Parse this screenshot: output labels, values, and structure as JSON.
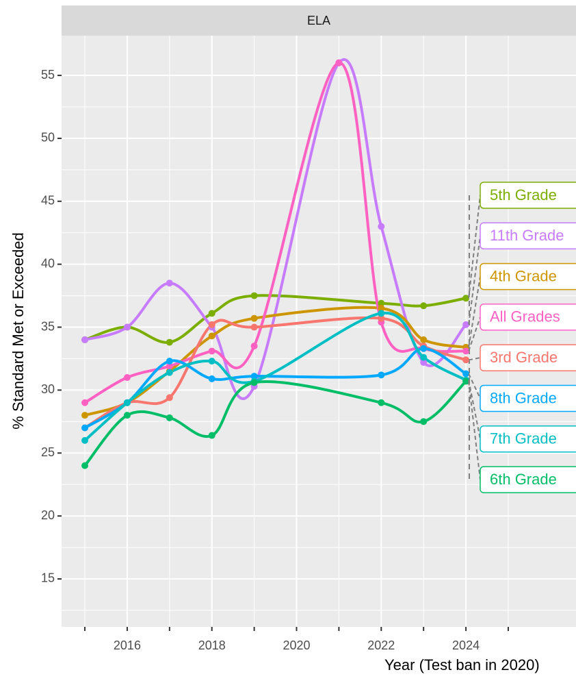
{
  "chart_data": {
    "type": "line",
    "strip": "ELA",
    "xlabel": "Year (Test ban in 2020)",
    "ylabel": "% Standard Met or Exceeded",
    "xlim": [
      2014.45,
      2026.6
    ],
    "ylim": [
      11.19,
      58.16
    ],
    "xticks": [
      2016,
      2018,
      2020,
      2022,
      2024
    ],
    "yticks": [
      15,
      20,
      25,
      30,
      35,
      40,
      45,
      50,
      55
    ],
    "grid": true,
    "series": [
      {
        "name": "5th Grade",
        "color": "#7CAE00",
        "x": [
          2015,
          2016,
          2017,
          2018,
          2019,
          2022,
          2023,
          2024
        ],
        "values": [
          34,
          35,
          33.8,
          36.1,
          37.5,
          36.9,
          36.7,
          37.3
        ]
      },
      {
        "name": "11th Grade",
        "color": "#C77CFF",
        "x": [
          2015,
          2016,
          2017,
          2018,
          2019,
          2021,
          2022,
          2023,
          2024
        ],
        "values": [
          34,
          35,
          38.5,
          35,
          30.3,
          56,
          43,
          32.2,
          35.2
        ]
      },
      {
        "name": "4th Grade",
        "color": "#CD9600",
        "x": [
          2015,
          2016,
          2017,
          2018,
          2019,
          2022,
          2023,
          2024
        ],
        "values": [
          28,
          29,
          31.5,
          34.3,
          35.7,
          36.5,
          34,
          33.4
        ]
      },
      {
        "name": "All Grades",
        "color": "#FF61C3",
        "x": [
          2015,
          2016,
          2017,
          2018,
          2019,
          2021,
          2022,
          2023,
          2024
        ],
        "values": [
          29,
          31,
          31.9,
          33.1,
          33.5,
          56,
          35.4,
          33.3,
          33.1
        ]
      },
      {
        "name": "3rd Grade",
        "color": "#F8766D",
        "x": [
          2015,
          2016,
          2017,
          2018,
          2019,
          2022,
          2023,
          2024
        ],
        "values": [
          27,
          29,
          29.4,
          35.2,
          35,
          35.7,
          33.5,
          32.4
        ]
      },
      {
        "name": "8th Grade",
        "color": "#00A9FF",
        "x": [
          2015,
          2016,
          2017,
          2018,
          2019,
          2022,
          2023,
          2024
        ],
        "values": [
          27,
          29,
          32.3,
          30.9,
          31.1,
          31.2,
          33.3,
          31.3
        ]
      },
      {
        "name": "7th Grade",
        "color": "#00BFC4",
        "x": [
          2015,
          2016,
          2017,
          2018,
          2019,
          2022,
          2023,
          2024
        ],
        "values": [
          26,
          29,
          31.4,
          32.3,
          30.7,
          36.1,
          32.6,
          30.8
        ]
      },
      {
        "name": "6th Grade",
        "color": "#00BE67",
        "x": [
          2015,
          2016,
          2017,
          2018,
          2019,
          2022,
          2023,
          2024
        ],
        "values": [
          24,
          28,
          27.8,
          26.4,
          30.6,
          29,
          27.5,
          30.7
        ]
      }
    ]
  }
}
